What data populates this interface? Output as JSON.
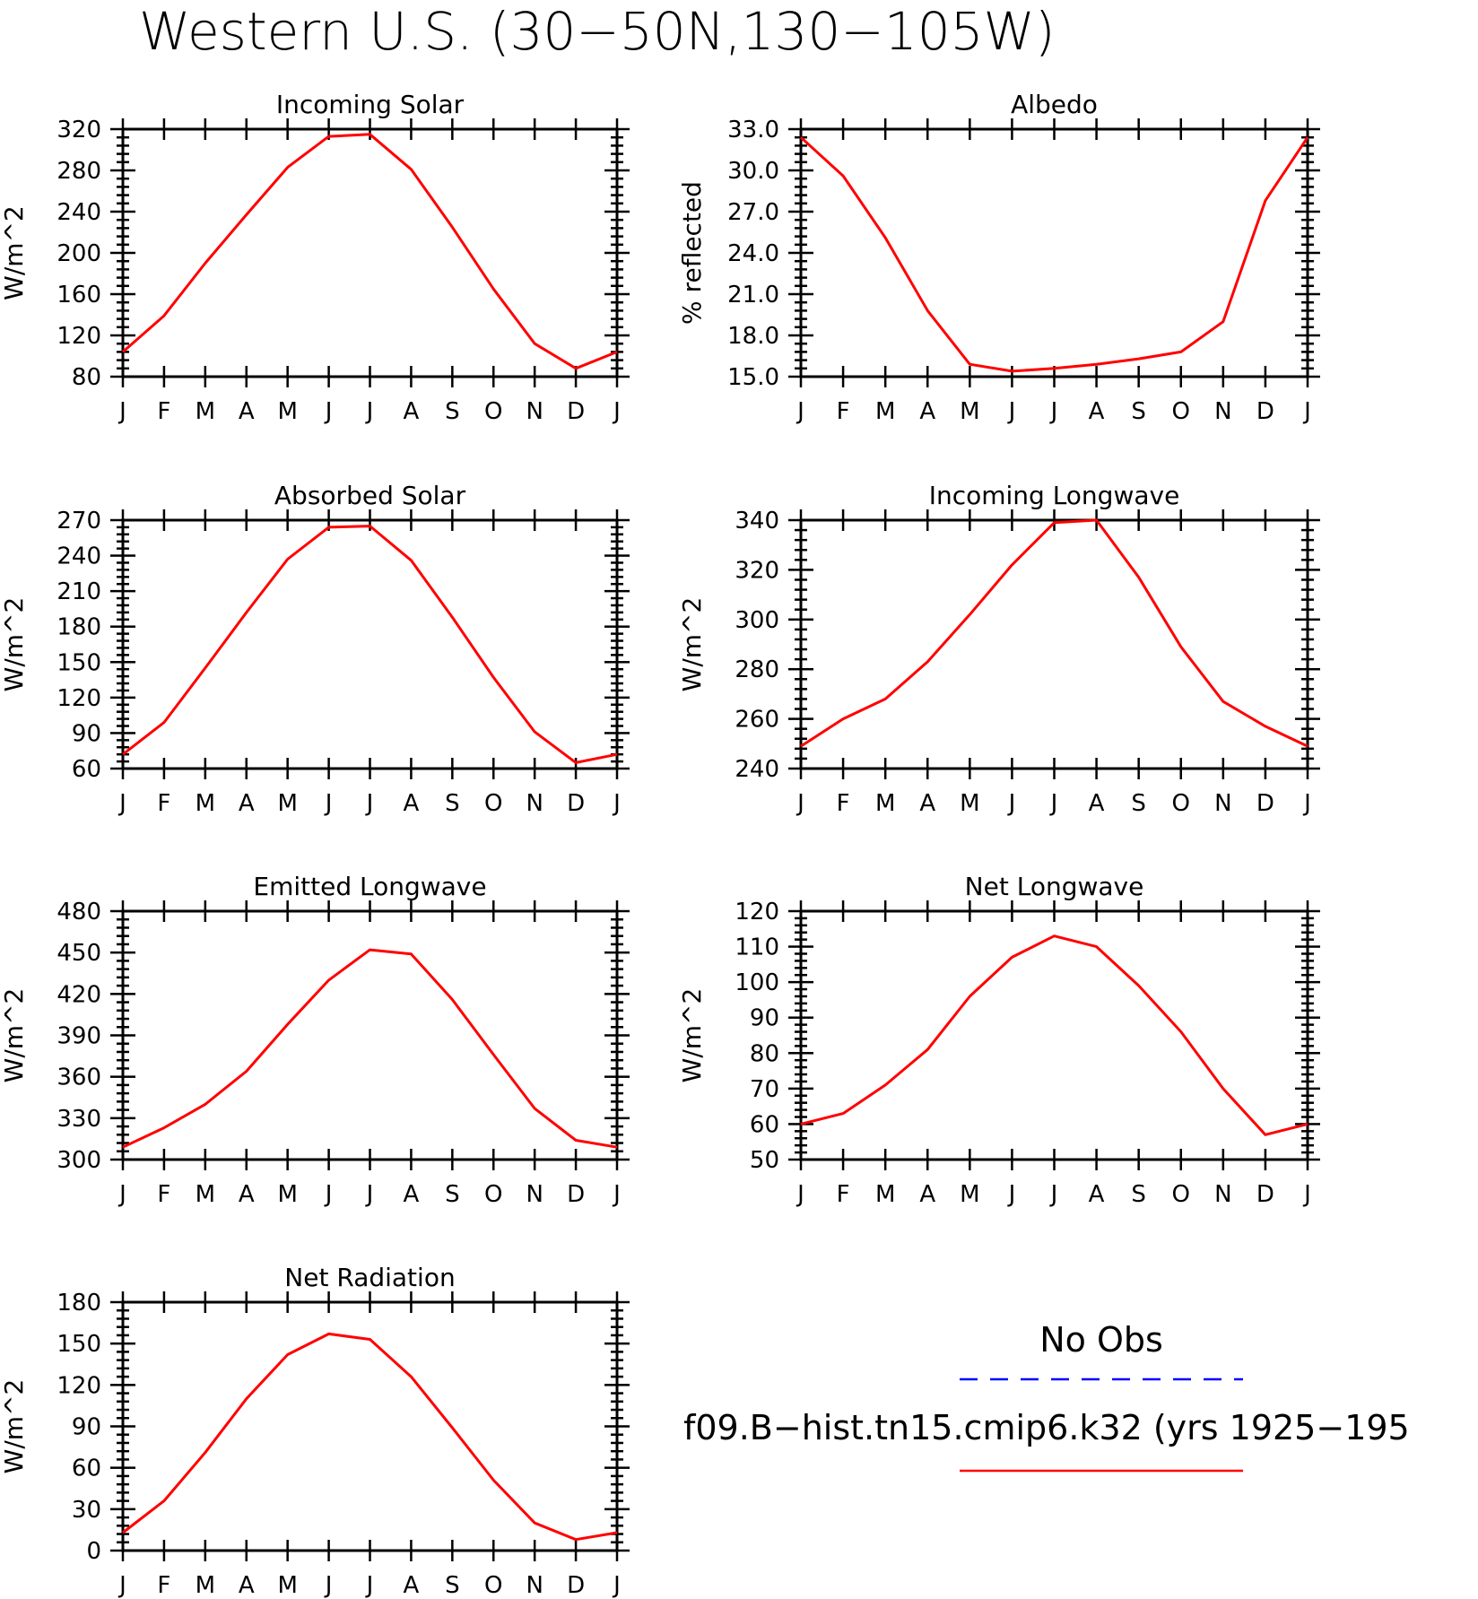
{
  "figure": {
    "title": "Western U.S. (30−50N,130−105W)",
    "series_color": "#ff0000",
    "obs_color": "#0000ff"
  },
  "legend": {
    "obs_label": "No Obs",
    "model_label": "f09.B−hist.tn15.cmip6.k32 (yrs 1925−195"
  },
  "chart_data": [
    {
      "type": "line",
      "title": "Incoming Solar",
      "ylabel": "W/m^2",
      "x": [
        "J",
        "F",
        "M",
        "A",
        "M",
        "J",
        "J",
        "A",
        "S",
        "O",
        "N",
        "D",
        "J"
      ],
      "ylim": [
        80,
        320
      ],
      "yticks": [
        80,
        120,
        160,
        200,
        240,
        280,
        320
      ],
      "ytick_labels": [
        "80",
        "120",
        "160",
        "200",
        "240",
        "280",
        "320"
      ],
      "series": [
        {
          "values": [
            104,
            139,
            190,
            237,
            283,
            313,
            315,
            281,
            225,
            165,
            112,
            88,
            104
          ]
        }
      ]
    },
    {
      "type": "line",
      "title": "Albedo",
      "ylabel": "% reflected",
      "x": [
        "J",
        "F",
        "M",
        "A",
        "M",
        "J",
        "J",
        "A",
        "S",
        "O",
        "N",
        "D",
        "J"
      ],
      "ylim": [
        15,
        33
      ],
      "yticks": [
        15,
        18,
        21,
        24,
        27,
        30,
        33
      ],
      "ytick_labels": [
        "15.0",
        "18.0",
        "21.0",
        "24.0",
        "27.0",
        "30.0",
        "33.0"
      ],
      "series": [
        {
          "values": [
            32.4,
            29.6,
            25.1,
            19.8,
            15.9,
            15.4,
            15.6,
            15.9,
            16.3,
            16.8,
            19.0,
            27.8,
            32.4
          ]
        }
      ]
    },
    {
      "type": "line",
      "title": "Absorbed Solar",
      "ylabel": "W/m^2",
      "x": [
        "J",
        "F",
        "M",
        "A",
        "M",
        "J",
        "J",
        "A",
        "S",
        "O",
        "N",
        "D",
        "J"
      ],
      "ylim": [
        60,
        270
      ],
      "yticks": [
        60,
        90,
        120,
        150,
        180,
        210,
        240,
        270
      ],
      "ytick_labels": [
        "60",
        "90",
        "120",
        "150",
        "180",
        "210",
        "240",
        "270"
      ],
      "series": [
        {
          "values": [
            72,
            99,
            145,
            192,
            237,
            264,
            265,
            236,
            188,
            137,
            91,
            65,
            72
          ]
        }
      ]
    },
    {
      "type": "line",
      "title": "Incoming Longwave",
      "ylabel": "W/m^2",
      "x": [
        "J",
        "F",
        "M",
        "A",
        "M",
        "J",
        "J",
        "A",
        "S",
        "O",
        "N",
        "D",
        "J"
      ],
      "ylim": [
        240,
        340
      ],
      "yticks": [
        240,
        260,
        280,
        300,
        320,
        340
      ],
      "ytick_labels": [
        "240",
        "260",
        "280",
        "300",
        "320",
        "340"
      ],
      "series": [
        {
          "values": [
            249,
            260,
            268,
            283,
            302,
            322,
            339,
            340,
            317,
            289,
            267,
            257,
            249
          ]
        }
      ]
    },
    {
      "type": "line",
      "title": "Emitted Longwave",
      "ylabel": "W/m^2",
      "x": [
        "J",
        "F",
        "M",
        "A",
        "M",
        "J",
        "J",
        "A",
        "S",
        "O",
        "N",
        "D",
        "J"
      ],
      "ylim": [
        300,
        480
      ],
      "yticks": [
        300,
        330,
        360,
        390,
        420,
        450,
        480
      ],
      "ytick_labels": [
        "300",
        "330",
        "360",
        "390",
        "420",
        "450",
        "480"
      ],
      "series": [
        {
          "values": [
            309,
            323,
            340,
            364,
            398,
            430,
            452,
            449,
            416,
            376,
            337,
            314,
            309
          ]
        }
      ]
    },
    {
      "type": "line",
      "title": "Net Longwave",
      "ylabel": "W/m^2",
      "x": [
        "J",
        "F",
        "M",
        "A",
        "M",
        "J",
        "J",
        "A",
        "S",
        "O",
        "N",
        "D",
        "J"
      ],
      "ylim": [
        50,
        120
      ],
      "yticks": [
        50,
        60,
        70,
        80,
        90,
        100,
        110,
        120
      ],
      "ytick_labels": [
        "50",
        "60",
        "70",
        "80",
        "90",
        "100",
        "110",
        "120"
      ],
      "series": [
        {
          "values": [
            60,
            63,
            71,
            81,
            96,
            107,
            113,
            110,
            99,
            86,
            70,
            57,
            60
          ]
        }
      ]
    },
    {
      "type": "line",
      "title": "Net Radiation",
      "ylabel": "W/m^2",
      "x": [
        "J",
        "F",
        "M",
        "A",
        "M",
        "J",
        "J",
        "A",
        "S",
        "O",
        "N",
        "D",
        "J"
      ],
      "ylim": [
        0,
        180
      ],
      "yticks": [
        0,
        30,
        60,
        90,
        120,
        150,
        180
      ],
      "ytick_labels": [
        "0",
        "30",
        "60",
        "90",
        "120",
        "150",
        "180"
      ],
      "series": [
        {
          "values": [
            13,
            36,
            71,
            110,
            142,
            157,
            153,
            126,
            89,
            51,
            20,
            8,
            13
          ]
        }
      ]
    }
  ]
}
